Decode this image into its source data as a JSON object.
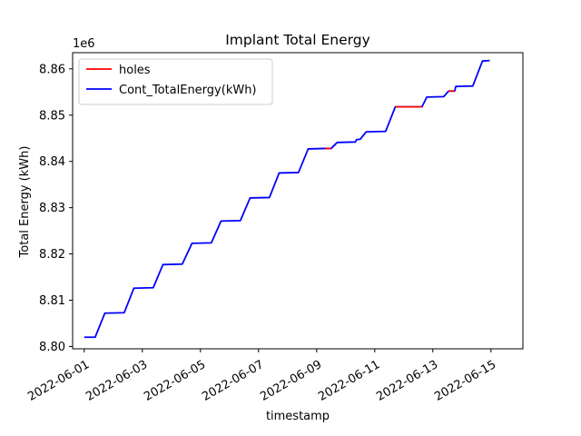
{
  "chart_data": {
    "type": "line",
    "title": "Implant Total Energy",
    "xlabel": "timestamp",
    "ylabel": "Total Energy (kWh)",
    "y_offset_label": "1e6",
    "x_range": [
      "2022-06-01",
      "2022-06-15"
    ],
    "ylim": [
      8799500,
      8863500
    ],
    "xlim_days": [
      -0.4,
      15.1
    ],
    "x_ticks": [
      "2022-06-01",
      "2022-06-03",
      "2022-06-05",
      "2022-06-07",
      "2022-06-09",
      "2022-06-11",
      "2022-06-13",
      "2022-06-15"
    ],
    "y_ticks": [
      {
        "value": 8800000,
        "label": "8.80"
      },
      {
        "value": 8810000,
        "label": "8.81"
      },
      {
        "value": 8820000,
        "label": "8.82"
      },
      {
        "value": 8830000,
        "label": "8.83"
      },
      {
        "value": 8840000,
        "label": "8.84"
      },
      {
        "value": 8850000,
        "label": "8.85"
      },
      {
        "value": 8860000,
        "label": "8.86"
      }
    ],
    "grid": false,
    "legend_position": "upper-left",
    "series": [
      {
        "name": "holes",
        "color": "#ff0000",
        "segments": [
          [
            [
              "2022-06-09 07:12",
              8842800
            ],
            [
              "2022-06-09 12:00",
              8842800
            ]
          ],
          [
            [
              "2022-06-11 17:00",
              8851800
            ],
            [
              "2022-06-12 15:00",
              8851800
            ]
          ],
          [
            [
              "2022-06-13 13:00",
              8855200
            ],
            [
              "2022-06-13 18:00",
              8855200
            ]
          ]
        ]
      },
      {
        "name": "Cont_TotalEnergy(kWh)",
        "color": "#0000ff",
        "points": [
          [
            "2022-06-01 00:00",
            8802000
          ],
          [
            "2022-06-01 09:00",
            8802000
          ],
          [
            "2022-06-01 17:00",
            8807200
          ],
          [
            "2022-06-02 09:00",
            8807300
          ],
          [
            "2022-06-02 17:00",
            8812600
          ],
          [
            "2022-06-03 09:00",
            8812700
          ],
          [
            "2022-06-03 17:00",
            8817700
          ],
          [
            "2022-06-04 09:00",
            8817800
          ],
          [
            "2022-06-04 17:00",
            8822300
          ],
          [
            "2022-06-05 09:00",
            8822400
          ],
          [
            "2022-06-05 17:00",
            8827100
          ],
          [
            "2022-06-06 09:00",
            8827200
          ],
          [
            "2022-06-06 17:00",
            8832100
          ],
          [
            "2022-06-07 09:00",
            8832200
          ],
          [
            "2022-06-07 17:00",
            8837500
          ],
          [
            "2022-06-08 09:00",
            8837600
          ],
          [
            "2022-06-08 17:00",
            8842700
          ],
          [
            "2022-06-09 07:12",
            8842800
          ],
          [
            "2022-06-09 12:00",
            8842800
          ],
          [
            "2022-06-09 17:00",
            8844100
          ],
          [
            "2022-06-10 08:00",
            8844200
          ],
          [
            "2022-06-10 09:00",
            8844700
          ],
          [
            "2022-06-10 12:00",
            8844800
          ],
          [
            "2022-06-10 17:00",
            8846400
          ],
          [
            "2022-06-11 09:00",
            8846500
          ],
          [
            "2022-06-11 17:00",
            8851800
          ],
          [
            "2022-06-12 15:00",
            8851800
          ],
          [
            "2022-06-12 19:00",
            8853900
          ],
          [
            "2022-06-13 09:00",
            8854000
          ],
          [
            "2022-06-13 13:00",
            8855200
          ],
          [
            "2022-06-13 18:00",
            8855200
          ],
          [
            "2022-06-13 19:00",
            8856200
          ],
          [
            "2022-06-14 09:00",
            8856300
          ],
          [
            "2022-06-14 17:00",
            8861700
          ],
          [
            "2022-06-14 23:00",
            8861800
          ]
        ]
      }
    ]
  }
}
